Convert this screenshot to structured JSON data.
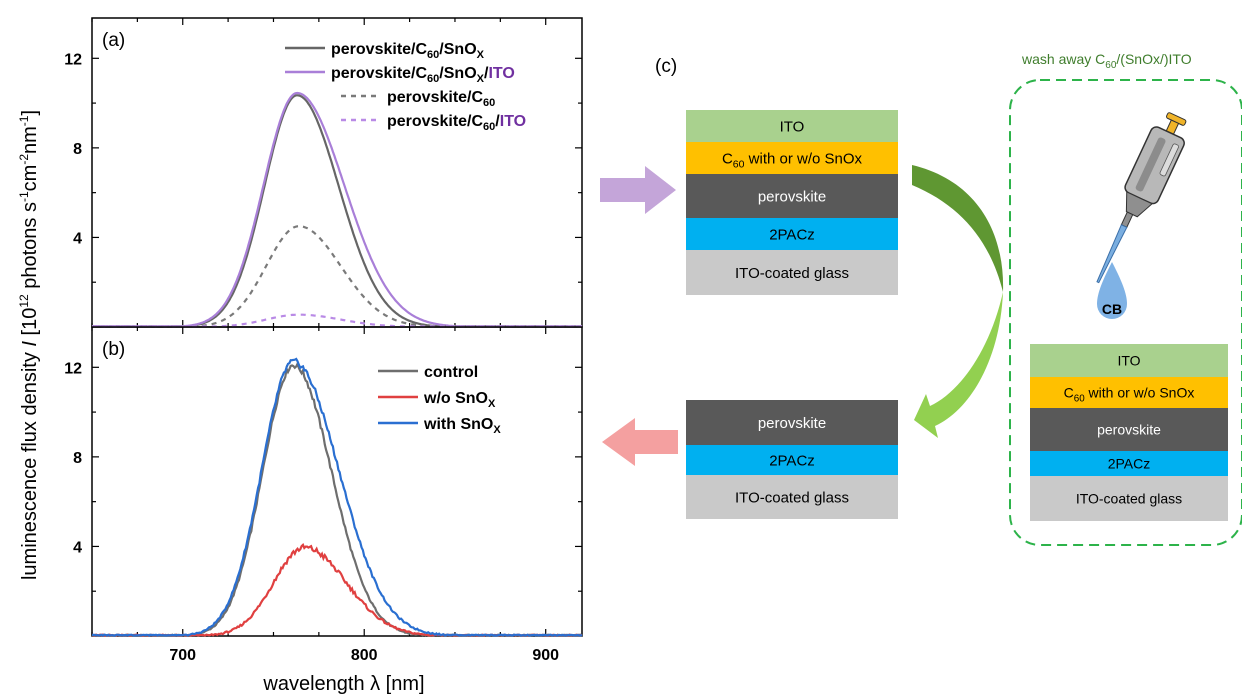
{
  "chart_data": [
    {
      "panel": "(a)",
      "type": "line",
      "xlabel": "wavelength λ [nm]",
      "ylabel": "luminescence flux density I [10^12 photons s^-1 cm^-2 nm^-1]",
      "xlim": [
        650,
        920
      ],
      "ylim": [
        0,
        13.8
      ],
      "yticks": [
        4,
        8,
        12
      ],
      "series": [
        {
          "name": "perovskite/C60/SnOX",
          "label_parts": [
            "perovskite/C",
            "60",
            "/SnO",
            "X",
            ""
          ],
          "color": "#666666",
          "style": "solid",
          "peak": 10.35,
          "center": 763,
          "sigma_left": 18,
          "sigma_right": 23
        },
        {
          "name": "perovskite/C60/SnOX/ITO",
          "label_parts": [
            "perovskite/C",
            "60",
            "/SnO",
            "X",
            "/"
          ],
          "label_suffix": "ITO",
          "color": "#a97fd8",
          "style": "solid",
          "peak": 10.45,
          "center": 763,
          "sigma_left": 18.5,
          "sigma_right": 26
        },
        {
          "name": "perovskite/C60",
          "label_parts": [
            "perovskite/C",
            "60",
            "",
            "",
            ""
          ],
          "color": "#7a7a7a",
          "style": "dash",
          "peak": 4.5,
          "center": 764,
          "sigma_left": 18,
          "sigma_right": 23
        },
        {
          "name": "perovskite/C60/ITO",
          "label_parts": [
            "perovskite/C",
            "60",
            "/",
            "",
            ""
          ],
          "label_suffix": "ITO",
          "color": "#b98ae6",
          "style": "dash",
          "peak": 0.55,
          "center": 764,
          "sigma_left": 18,
          "sigma_right": 23
        }
      ]
    },
    {
      "panel": "(b)",
      "type": "line",
      "xlabel": "wavelength λ [nm]",
      "xlim": [
        650,
        920
      ],
      "ylim": [
        0,
        13.8
      ],
      "xticks": [
        700,
        800,
        900
      ],
      "yticks": [
        4,
        8,
        12
      ],
      "series": [
        {
          "name": "control",
          "label_parts": [
            "control",
            "",
            "",
            "",
            ""
          ],
          "color": "#6e6e6e",
          "style": "solid",
          "peak": 12.1,
          "center": 761,
          "sigma_left": 17,
          "sigma_right": 21
        },
        {
          "name": "w/o SnOX",
          "label_parts": [
            "w/o SnO",
            "",
            "",
            "X",
            ""
          ],
          "color": "#e04040",
          "style": "solid",
          "peak": 3.95,
          "center": 767,
          "sigma_left": 17,
          "sigma_right": 23
        },
        {
          "name": "with SnOX",
          "label_parts": [
            "with SnO",
            "",
            "",
            "X",
            ""
          ],
          "color": "#2a6fd1",
          "style": "solid",
          "peak": 12.25,
          "center": 761,
          "sigma_left": 17.5,
          "sigma_right": 25
        }
      ]
    }
  ],
  "diagram": {
    "panel_label": "(c)",
    "wash_label_parts": [
      "wash away C",
      "60",
      "/(SnOx/)ITO"
    ],
    "drop_label": "CB",
    "full_stack": {
      "layers": [
        {
          "text": "ITO",
          "color": "#a9d18e",
          "text_color": "#000000"
        },
        {
          "text_parts": [
            "C",
            "60",
            " with or w/o SnOx"
          ],
          "color": "#ffc000",
          "text_color": "#000000"
        },
        {
          "text": "perovskite",
          "color": "#595959",
          "text_color": "#ffffff"
        },
        {
          "text": "2PACz",
          "color": "#00b0f0",
          "text_color": "#000000"
        },
        {
          "text": "ITO-coated glass",
          "color": "#c9c9c9",
          "text_color": "#000000"
        }
      ]
    },
    "washed_stack": {
      "layers": [
        {
          "text": "perovskite",
          "color": "#595959",
          "text_color": "#ffffff"
        },
        {
          "text": "2PACz",
          "color": "#00b0f0",
          "text_color": "#000000"
        },
        {
          "text": "ITO-coated glass",
          "color": "#c9c9c9",
          "text_color": "#000000"
        }
      ]
    },
    "colors": {
      "arrow_purple": "#c4a5d9",
      "arrow_pink": "#f4a0a0",
      "curve_green_dark": "#5f9732",
      "curve_green_light": "#92d050",
      "dashed_box": "#2db34a",
      "wash_text": "#3f7d2c",
      "ito_label": "#7030a0"
    }
  }
}
